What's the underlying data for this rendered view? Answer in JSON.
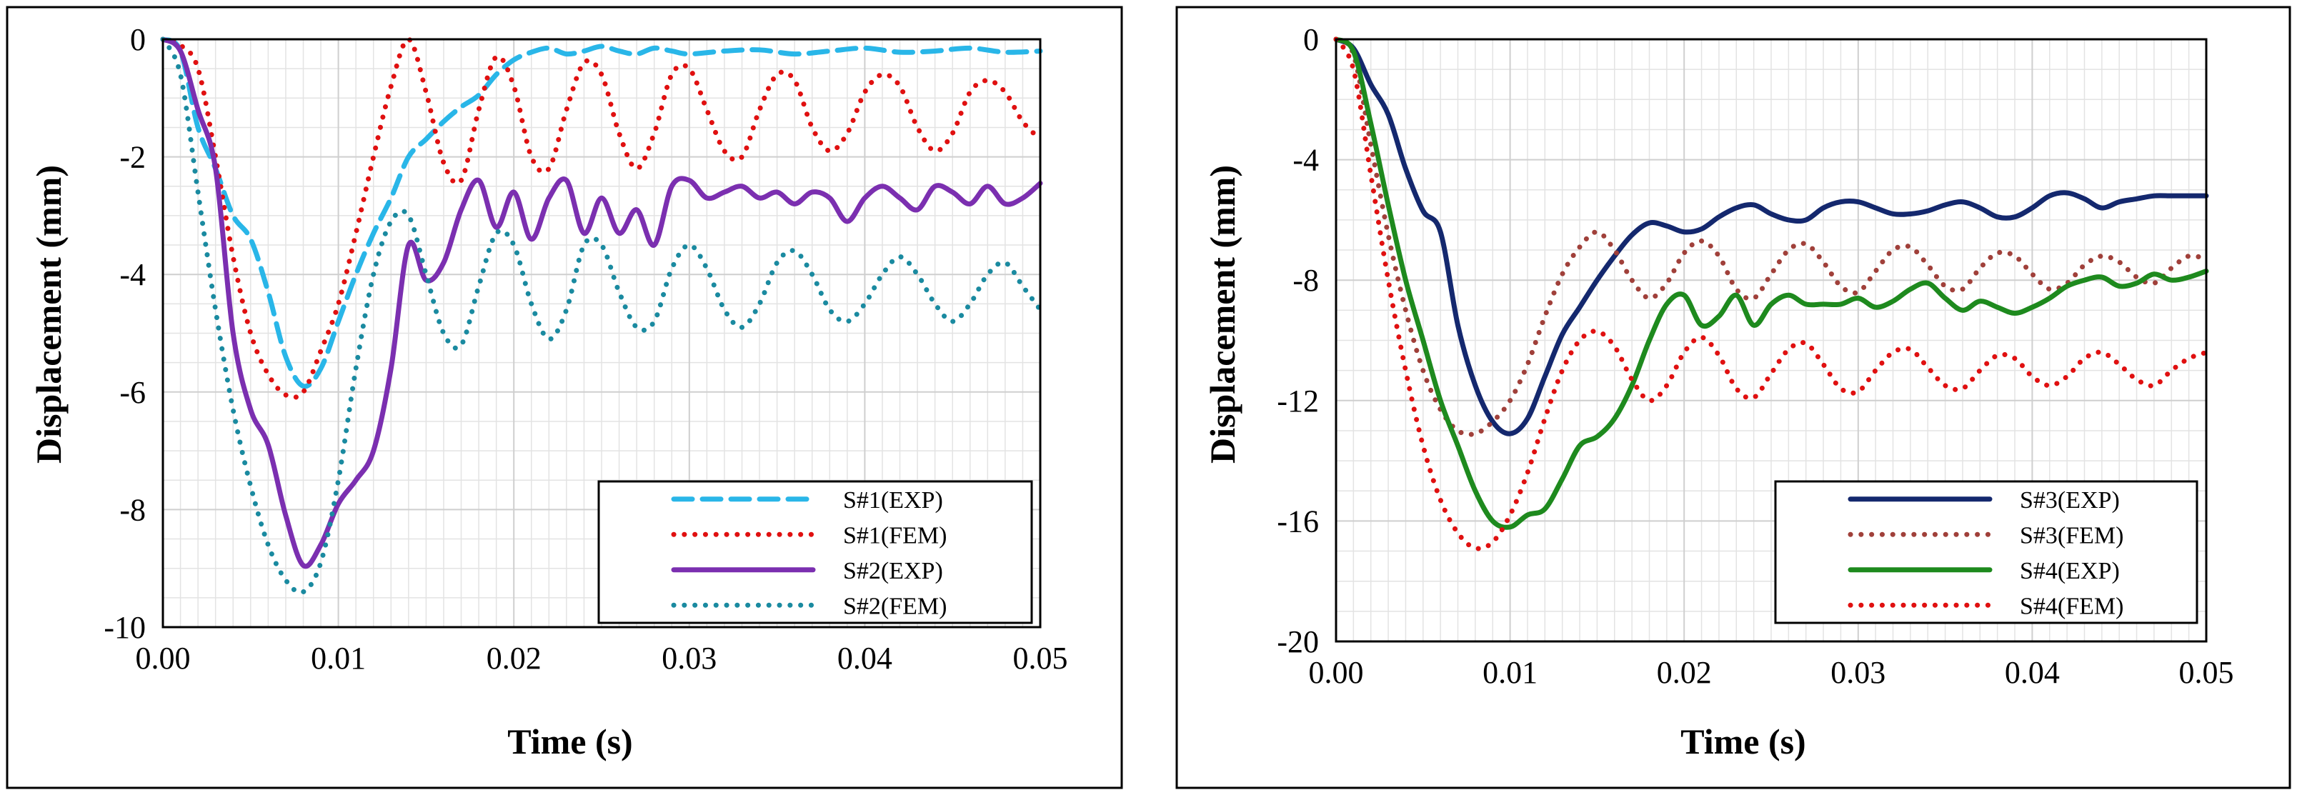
{
  "chart_data": [
    {
      "type": "line",
      "xlabel": "Time (s)",
      "ylabel": "Displacement (mm)",
      "xlim": [
        0,
        0.05
      ],
      "ylim": [
        -10,
        0
      ],
      "xticks": [
        0,
        0.01,
        0.02,
        0.03,
        0.04,
        0.05
      ],
      "xtick_labels": [
        "0.00",
        "0.01",
        "0.02",
        "0.03",
        "0.04",
        "0.05"
      ],
      "yticks": [
        0,
        -2,
        -4,
        -6,
        -8,
        -10
      ],
      "ytick_labels": [
        "0",
        "-2",
        "-4",
        "-6",
        "-8",
        "-10"
      ],
      "grid": true,
      "legend_position": "bottom-right",
      "series": [
        {
          "name": "S#1(EXP)",
          "color": "#29b6e8",
          "style": "dashed",
          "x": [
            0,
            0.001,
            0.002,
            0.003,
            0.004,
            0.005,
            0.006,
            0.007,
            0.008,
            0.009,
            0.01,
            0.011,
            0.012,
            0.013,
            0.014,
            0.015,
            0.016,
            0.017,
            0.018,
            0.019,
            0.02,
            0.021,
            0.022,
            0.023,
            0.024,
            0.025,
            0.026,
            0.027,
            0.028,
            0.029,
            0.03,
            0.032,
            0.034,
            0.036,
            0.038,
            0.04,
            0.042,
            0.044,
            0.046,
            0.048,
            0.05
          ],
          "y": [
            0,
            -0.2,
            -1.5,
            -2.2,
            -3.0,
            -3.4,
            -4.3,
            -5.4,
            -5.9,
            -5.6,
            -4.8,
            -4.0,
            -3.3,
            -2.7,
            -2.0,
            -1.7,
            -1.4,
            -1.15,
            -0.95,
            -0.6,
            -0.35,
            -0.22,
            -0.15,
            -0.25,
            -0.2,
            -0.12,
            -0.2,
            -0.25,
            -0.15,
            -0.2,
            -0.25,
            -0.2,
            -0.18,
            -0.25,
            -0.2,
            -0.15,
            -0.22,
            -0.2,
            -0.15,
            -0.22,
            -0.2
          ]
        },
        {
          "name": "S#1(FEM)",
          "color": "#e01010",
          "style": "dotted",
          "x": [
            0,
            0.001,
            0.002,
            0.003,
            0.004,
            0.005,
            0.006,
            0.007,
            0.008,
            0.009,
            0.01,
            0.011,
            0.012,
            0.013,
            0.014,
            0.015,
            0.016,
            0.017,
            0.018,
            0.019,
            0.02,
            0.021,
            0.022,
            0.023,
            0.024,
            0.025,
            0.026,
            0.027,
            0.028,
            0.029,
            0.03,
            0.031,
            0.032,
            0.033,
            0.034,
            0.035,
            0.036,
            0.037,
            0.038,
            0.039,
            0.04,
            0.041,
            0.042,
            0.043,
            0.044,
            0.045,
            0.046,
            0.047,
            0.048,
            0.049,
            0.05
          ],
          "y": [
            0,
            -0.1,
            -0.5,
            -2.0,
            -3.7,
            -5.0,
            -5.7,
            -6.05,
            -6.0,
            -5.3,
            -4.5,
            -3.3,
            -2.0,
            -0.8,
            0.0,
            -0.9,
            -2.1,
            -2.4,
            -1.2,
            -0.3,
            -0.8,
            -2.0,
            -2.2,
            -1.2,
            -0.4,
            -0.6,
            -1.6,
            -2.2,
            -1.6,
            -0.6,
            -0.5,
            -1.2,
            -1.9,
            -2.0,
            -1.2,
            -0.6,
            -0.7,
            -1.5,
            -1.9,
            -1.6,
            -0.9,
            -0.6,
            -0.8,
            -1.5,
            -1.9,
            -1.6,
            -0.9,
            -0.7,
            -0.9,
            -1.4,
            -1.7
          ]
        },
        {
          "name": "S#2(EXP)",
          "color": "#7b2fb0",
          "style": "solid",
          "x": [
            0,
            0.001,
            0.002,
            0.003,
            0.004,
            0.005,
            0.006,
            0.007,
            0.008,
            0.009,
            0.01,
            0.011,
            0.012,
            0.013,
            0.014,
            0.015,
            0.016,
            0.017,
            0.018,
            0.019,
            0.02,
            0.021,
            0.022,
            0.023,
            0.024,
            0.025,
            0.026,
            0.027,
            0.028,
            0.029,
            0.03,
            0.031,
            0.032,
            0.033,
            0.034,
            0.035,
            0.036,
            0.037,
            0.038,
            0.039,
            0.04,
            0.041,
            0.042,
            0.043,
            0.044,
            0.045,
            0.046,
            0.047,
            0.048,
            0.049,
            0.05
          ],
          "y": [
            0,
            -0.2,
            -1.2,
            -2.2,
            -5.0,
            -6.3,
            -6.9,
            -8.1,
            -8.95,
            -8.6,
            -7.9,
            -7.5,
            -7.0,
            -5.6,
            -3.5,
            -4.1,
            -3.8,
            -2.9,
            -2.4,
            -3.2,
            -2.6,
            -3.4,
            -2.7,
            -2.4,
            -3.3,
            -2.7,
            -3.3,
            -2.9,
            -3.5,
            -2.5,
            -2.4,
            -2.7,
            -2.6,
            -2.5,
            -2.7,
            -2.6,
            -2.8,
            -2.6,
            -2.7,
            -3.1,
            -2.7,
            -2.5,
            -2.7,
            -2.9,
            -2.5,
            -2.6,
            -2.8,
            -2.5,
            -2.8,
            -2.7,
            -2.45
          ]
        },
        {
          "name": "S#2(FEM)",
          "color": "#1a8aa0",
          "style": "dotted",
          "x": [
            0,
            0.001,
            0.002,
            0.003,
            0.004,
            0.005,
            0.006,
            0.007,
            0.008,
            0.009,
            0.01,
            0.011,
            0.012,
            0.013,
            0.014,
            0.015,
            0.016,
            0.017,
            0.018,
            0.019,
            0.02,
            0.021,
            0.022,
            0.023,
            0.024,
            0.025,
            0.026,
            0.027,
            0.028,
            0.029,
            0.03,
            0.031,
            0.032,
            0.033,
            0.034,
            0.035,
            0.036,
            0.037,
            0.038,
            0.039,
            0.04,
            0.041,
            0.042,
            0.043,
            0.044,
            0.045,
            0.046,
            0.047,
            0.048,
            0.049,
            0.05
          ],
          "y": [
            0,
            -0.6,
            -2.6,
            -4.6,
            -6.3,
            -7.6,
            -8.6,
            -9.2,
            -9.4,
            -8.9,
            -7.5,
            -5.6,
            -4.0,
            -3.1,
            -3.0,
            -4.0,
            -5.0,
            -5.2,
            -4.2,
            -3.3,
            -3.5,
            -4.5,
            -5.1,
            -4.6,
            -3.5,
            -3.5,
            -4.3,
            -4.9,
            -4.8,
            -3.9,
            -3.5,
            -3.9,
            -4.6,
            -4.9,
            -4.5,
            -3.8,
            -3.6,
            -4.0,
            -4.6,
            -4.8,
            -4.5,
            -4.0,
            -3.7,
            -4.0,
            -4.5,
            -4.8,
            -4.5,
            -4.0,
            -3.8,
            -4.2,
            -4.6
          ]
        }
      ]
    },
    {
      "type": "line",
      "xlabel": "Time (s)",
      "ylabel": "Displacement (mm)",
      "xlim": [
        0,
        0.05
      ],
      "ylim": [
        -20,
        0
      ],
      "xticks": [
        0,
        0.01,
        0.02,
        0.03,
        0.04,
        0.05
      ],
      "xtick_labels": [
        "0.00",
        "0.01",
        "0.02",
        "0.03",
        "0.04",
        "0.05"
      ],
      "yticks": [
        0,
        -4,
        -8,
        -12,
        -16,
        -20
      ],
      "ytick_labels": [
        "0",
        "-4",
        "-8",
        "-12",
        "-16",
        "-20"
      ],
      "grid": true,
      "legend_position": "bottom-right",
      "series": [
        {
          "name": "S#3(EXP)",
          "color": "#14286e",
          "style": "solid",
          "x": [
            0,
            0.001,
            0.002,
            0.003,
            0.004,
            0.005,
            0.006,
            0.007,
            0.008,
            0.009,
            0.01,
            0.011,
            0.012,
            0.013,
            0.014,
            0.015,
            0.016,
            0.017,
            0.018,
            0.019,
            0.02,
            0.021,
            0.022,
            0.023,
            0.024,
            0.025,
            0.026,
            0.027,
            0.028,
            0.029,
            0.03,
            0.031,
            0.032,
            0.033,
            0.034,
            0.035,
            0.036,
            0.037,
            0.038,
            0.039,
            0.04,
            0.041,
            0.042,
            0.043,
            0.044,
            0.045,
            0.046,
            0.047,
            0.048,
            0.049,
            0.05
          ],
          "y": [
            0,
            -0.3,
            -1.5,
            -2.5,
            -4.3,
            -5.7,
            -6.4,
            -9.5,
            -11.5,
            -12.7,
            -13.1,
            -12.6,
            -11.2,
            -9.8,
            -8.9,
            -8.0,
            -7.2,
            -6.5,
            -6.1,
            -6.2,
            -6.4,
            -6.3,
            -5.9,
            -5.6,
            -5.5,
            -5.8,
            -6.0,
            -6.0,
            -5.6,
            -5.4,
            -5.4,
            -5.6,
            -5.8,
            -5.8,
            -5.7,
            -5.5,
            -5.4,
            -5.6,
            -5.9,
            -5.9,
            -5.6,
            -5.2,
            -5.1,
            -5.3,
            -5.6,
            -5.4,
            -5.3,
            -5.2,
            -5.2,
            -5.2,
            -5.2
          ]
        },
        {
          "name": "S#3(FEM)",
          "color": "#a0403a",
          "style": "dotted",
          "x": [
            0,
            0.001,
            0.002,
            0.003,
            0.004,
            0.005,
            0.006,
            0.007,
            0.008,
            0.009,
            0.01,
            0.011,
            0.012,
            0.013,
            0.014,
            0.015,
            0.016,
            0.017,
            0.018,
            0.019,
            0.02,
            0.021,
            0.022,
            0.023,
            0.024,
            0.025,
            0.026,
            0.027,
            0.028,
            0.029,
            0.03,
            0.031,
            0.032,
            0.033,
            0.034,
            0.035,
            0.036,
            0.037,
            0.038,
            0.039,
            0.04,
            0.041,
            0.042,
            0.043,
            0.044,
            0.045,
            0.046,
            0.047,
            0.048,
            0.049,
            0.05
          ],
          "y": [
            0,
            -0.5,
            -3.5,
            -6.5,
            -9.0,
            -11.0,
            -12.3,
            -13.0,
            -13.1,
            -12.7,
            -12.0,
            -10.8,
            -9.2,
            -7.8,
            -6.9,
            -6.4,
            -7.0,
            -8.0,
            -8.6,
            -8.1,
            -7.1,
            -6.7,
            -7.2,
            -8.3,
            -8.6,
            -7.8,
            -7.0,
            -6.8,
            -7.4,
            -8.2,
            -8.4,
            -7.7,
            -7.0,
            -6.9,
            -7.5,
            -8.2,
            -8.3,
            -7.6,
            -7.1,
            -7.2,
            -7.8,
            -8.3,
            -8.1,
            -7.5,
            -7.2,
            -7.4,
            -7.9,
            -8.1,
            -7.6,
            -7.2,
            -7.3
          ]
        },
        {
          "name": "S#4(EXP)",
          "color": "#1e8a1e",
          "style": "solid",
          "x": [
            0,
            0.001,
            0.002,
            0.003,
            0.004,
            0.005,
            0.006,
            0.007,
            0.008,
            0.009,
            0.01,
            0.011,
            0.012,
            0.013,
            0.014,
            0.015,
            0.016,
            0.017,
            0.018,
            0.019,
            0.02,
            0.021,
            0.022,
            0.023,
            0.024,
            0.025,
            0.026,
            0.027,
            0.028,
            0.029,
            0.03,
            0.031,
            0.032,
            0.033,
            0.034,
            0.035,
            0.036,
            0.037,
            0.038,
            0.039,
            0.04,
            0.041,
            0.042,
            0.043,
            0.044,
            0.045,
            0.046,
            0.047,
            0.048,
            0.049,
            0.05
          ],
          "y": [
            0,
            -0.4,
            -2.8,
            -5.5,
            -8.0,
            -10.0,
            -12.0,
            -13.5,
            -15.0,
            -16.0,
            -16.2,
            -15.8,
            -15.6,
            -14.6,
            -13.5,
            -13.2,
            -12.6,
            -11.5,
            -10.0,
            -8.8,
            -8.5,
            -9.5,
            -9.2,
            -8.5,
            -9.5,
            -8.8,
            -8.5,
            -8.8,
            -8.8,
            -8.8,
            -8.6,
            -8.9,
            -8.7,
            -8.3,
            -8.1,
            -8.6,
            -9.0,
            -8.7,
            -8.9,
            -9.1,
            -8.9,
            -8.6,
            -8.2,
            -8.0,
            -7.9,
            -8.2,
            -8.1,
            -7.8,
            -8.0,
            -7.9,
            -7.7
          ]
        },
        {
          "name": "S#4(FEM)",
          "color": "#e01010",
          "style": "dotted",
          "x": [
            0,
            0.001,
            0.002,
            0.003,
            0.004,
            0.005,
            0.006,
            0.007,
            0.008,
            0.009,
            0.01,
            0.011,
            0.012,
            0.013,
            0.014,
            0.015,
            0.016,
            0.017,
            0.018,
            0.019,
            0.02,
            0.021,
            0.022,
            0.023,
            0.024,
            0.025,
            0.026,
            0.027,
            0.028,
            0.029,
            0.03,
            0.031,
            0.032,
            0.033,
            0.034,
            0.035,
            0.036,
            0.037,
            0.038,
            0.039,
            0.04,
            0.041,
            0.042,
            0.043,
            0.044,
            0.045,
            0.046,
            0.047,
            0.048,
            0.049,
            0.05
          ],
          "y": [
            0,
            -1.0,
            -4.5,
            -8.0,
            -11.0,
            -13.5,
            -15.3,
            -16.4,
            -16.9,
            -16.7,
            -15.8,
            -14.4,
            -12.6,
            -11.0,
            -10.0,
            -9.7,
            -10.2,
            -11.3,
            -12.0,
            -11.5,
            -10.4,
            -9.9,
            -10.5,
            -11.6,
            -11.9,
            -11.1,
            -10.3,
            -10.1,
            -10.8,
            -11.6,
            -11.7,
            -11.0,
            -10.4,
            -10.3,
            -10.9,
            -11.5,
            -11.6,
            -11.0,
            -10.5,
            -10.6,
            -11.2,
            -11.5,
            -11.2,
            -10.6,
            -10.4,
            -10.8,
            -11.3,
            -11.5,
            -11.0,
            -10.6,
            -10.4
          ]
        }
      ]
    }
  ]
}
